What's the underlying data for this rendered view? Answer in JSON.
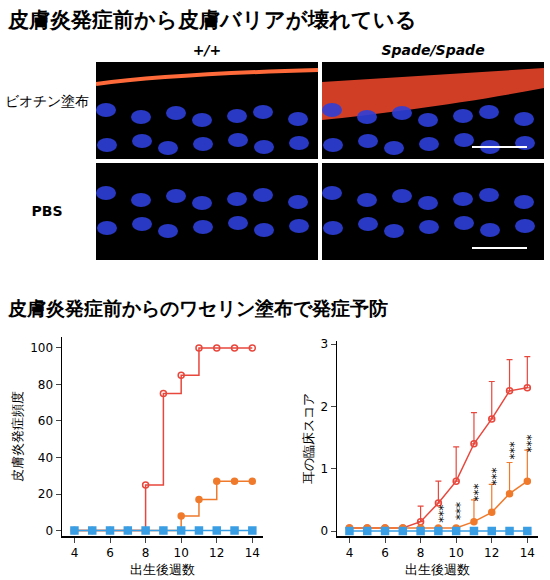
{
  "header": {
    "title": "皮膚炎発症前から皮膚バリアが壊れている"
  },
  "images": {
    "columns": [
      "+/+",
      "Spade/Spade"
    ],
    "rows": [
      "ビオチン塗布",
      "PBS"
    ]
  },
  "subtitle": "皮膚炎発症前からのワセリン塗布で発症予防",
  "chart_data": [
    {
      "type": "line",
      "y_label": "皮膚炎発症頻度",
      "x_label": "出生後週数",
      "x": [
        4,
        5,
        6,
        7,
        8,
        9,
        10,
        11,
        12,
        13,
        14
      ],
      "xlim": [
        3.3,
        14.6
      ],
      "xticks": [
        4,
        6,
        8,
        10,
        12,
        14
      ],
      "ylim": [
        -3,
        106
      ],
      "yticks": [
        0,
        20,
        40,
        60,
        80,
        100
      ],
      "grid": false,
      "series": [
        {
          "color": "#e8473c",
          "marker": "circle-open",
          "line_style": "step",
          "values": [
            0,
            0,
            0,
            0,
            25,
            75,
            85,
            100,
            100,
            100,
            100
          ]
        },
        {
          "color": "#f07a2c",
          "marker": "circle",
          "line_style": "step",
          "values": [
            0,
            0,
            0,
            0,
            0,
            0,
            8,
            17,
            27,
            27,
            27
          ]
        },
        {
          "color": "#3a9ee4",
          "marker": "square",
          "line_style": "solid",
          "values": [
            0,
            0,
            0,
            0,
            0,
            0,
            0,
            0,
            0,
            0,
            0
          ]
        }
      ]
    },
    {
      "type": "line",
      "y_label": "耳の臨床スコア",
      "x_label": "出生後週数",
      "x": [
        4,
        5,
        6,
        7,
        8,
        9,
        10,
        11,
        12,
        13,
        14
      ],
      "xlim": [
        3.3,
        14.6
      ],
      "xticks": [
        4,
        6,
        8,
        10,
        12,
        14
      ],
      "ylim": [
        -0.08,
        3.05
      ],
      "yticks": [
        0,
        1,
        2,
        3
      ],
      "grid": false,
      "series": [
        {
          "color": "#e8473c",
          "marker": "circle-open",
          "line_style": "solid",
          "values": [
            0.05,
            0.05,
            0.05,
            0.05,
            0.15,
            0.45,
            0.8,
            1.4,
            1.8,
            2.25,
            2.3
          ],
          "errors": [
            0,
            0,
            0,
            0,
            0.25,
            0.35,
            0.55,
            0.5,
            0.6,
            0.5,
            0.5
          ]
        },
        {
          "color": "#f07a2c",
          "marker": "circle",
          "line_style": "solid",
          "values": [
            0.05,
            0.05,
            0.05,
            0.05,
            0.05,
            0.05,
            0.05,
            0.15,
            0.3,
            0.6,
            0.8
          ],
          "errors": [
            0,
            0,
            0,
            0,
            0,
            0,
            0,
            0.35,
            0.45,
            0.5,
            0.5
          ]
        },
        {
          "color": "#3a9ee4",
          "marker": "square",
          "line_style": "solid",
          "values": [
            0,
            0,
            0,
            0,
            0,
            0,
            0,
            0,
            0,
            0,
            0
          ]
        }
      ],
      "annotations": [
        {
          "x": 9,
          "y": 0.27,
          "text": "***"
        },
        {
          "x": 10,
          "y": 0.32,
          "text": "***"
        },
        {
          "x": 11,
          "y": 0.62,
          "text": "***"
        },
        {
          "x": 12,
          "y": 0.88,
          "text": "***"
        },
        {
          "x": 13,
          "y": 1.3,
          "text": "***"
        },
        {
          "x": 14,
          "y": 1.4,
          "text": "***"
        }
      ]
    }
  ]
}
